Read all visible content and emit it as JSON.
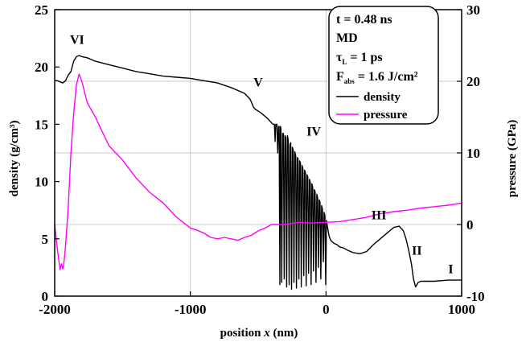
{
  "chart_data": {
    "type": "line",
    "xlabel_prefix": "position",
    "xlabel_var": "x",
    "xlabel_unit": "(nm)",
    "ylabel_left": "density (g/cm³)",
    "ylabel_right": "pressure (GPa)",
    "xlim": [
      -2000,
      1000
    ],
    "ylim_left": [
      0,
      25
    ],
    "ylim_right": [
      -10,
      30
    ],
    "x_ticks": [
      "-2000",
      "-1000",
      "0",
      "1000"
    ],
    "x_tick_values": [
      -2000,
      -1000,
      0,
      1000
    ],
    "y_left_ticks": [
      "0",
      "5",
      "10",
      "15",
      "20",
      "25"
    ],
    "y_left_tick_values": [
      0,
      5,
      10,
      15,
      20,
      25
    ],
    "y_right_ticks": [
      "-10",
      "0",
      "10",
      "20",
      "30"
    ],
    "y_right_tick_values": [
      -10,
      0,
      10,
      20,
      30
    ],
    "grid": true,
    "legend_position": "top-right",
    "info_box": {
      "time": "t = 0.48 ns",
      "method": "MD",
      "tau_main": "τ",
      "tau_sub": "L",
      "tau_value": " = 1 ps",
      "f_main": "F",
      "f_sub": "abs",
      "f_value": " = 1.6 J/cm²"
    },
    "annotations": [
      {
        "label": "VI",
        "x": -1835,
        "y": 22.0
      },
      {
        "label": "V",
        "x": -500,
        "y": 18.3
      },
      {
        "label": "IV",
        "x": -90,
        "y": 14.0
      },
      {
        "label": "III",
        "x": 390,
        "y": 6.7
      },
      {
        "label": "II",
        "x": 670,
        "y": 3.6
      },
      {
        "label": "I",
        "x": 920,
        "y": 2.0
      }
    ],
    "series": [
      {
        "name": "density",
        "axis": "left",
        "color": "#000000",
        "x": [
          -2000,
          -1980,
          -1940,
          -1920,
          -1900,
          -1880,
          -1860,
          -1840,
          -1820,
          -1800,
          -1760,
          -1700,
          -1600,
          -1500,
          -1400,
          -1300,
          -1200,
          -1100,
          -1000,
          -900,
          -800,
          -700,
          -600,
          -560,
          -545,
          -535,
          -520,
          -480,
          -430,
          -400,
          -390,
          -380,
          -375,
          -370,
          -362,
          -356,
          -350,
          -345,
          -340,
          -336,
          -332,
          -326,
          -320,
          -314,
          -308,
          -302,
          -296,
          -290,
          -284,
          -278,
          -272,
          -266,
          -260,
          -254,
          -248,
          -242,
          -236,
          -230,
          -224,
          -218,
          -212,
          -206,
          -200,
          -194,
          -188,
          -182,
          -176,
          -170,
          -164,
          -158,
          -152,
          -146,
          -140,
          -134,
          -128,
          -122,
          -116,
          -110,
          -104,
          -98,
          -92,
          -86,
          -80,
          -74,
          -68,
          -62,
          -56,
          -50,
          -44,
          -38,
          -32,
          -26,
          -20,
          -14,
          -8,
          -2,
          4,
          10,
          16,
          22,
          30,
          40,
          60,
          80,
          100,
          130,
          160,
          200,
          250,
          300,
          350,
          400,
          450,
          500,
          540,
          570,
          590,
          610,
          630,
          645,
          660,
          680,
          700,
          750,
          800,
          900,
          1000
        ],
        "y": [
          18.8,
          18.8,
          18.6,
          18.8,
          19.3,
          19.6,
          20.5,
          20.9,
          21.0,
          20.9,
          20.8,
          20.5,
          20.2,
          19.9,
          19.6,
          19.4,
          19.2,
          19.1,
          19.0,
          18.8,
          18.6,
          18.2,
          17.7,
          17.2,
          16.8,
          16.5,
          16.3,
          16.0,
          15.5,
          15.1,
          15.0,
          15.0,
          13.5,
          15.0,
          15.0,
          12.5,
          14.8,
          14.8,
          1.0,
          14.8,
          14.6,
          1.2,
          14.2,
          14.2,
          1.5,
          14.0,
          13.8,
          0.8,
          14.0,
          13.6,
          1.0,
          13.2,
          13.4,
          0.6,
          13.0,
          12.8,
          1.2,
          12.6,
          12.3,
          0.7,
          12.1,
          12.0,
          1.5,
          11.8,
          11.6,
          0.8,
          11.4,
          11.1,
          1.8,
          11.0,
          10.8,
          0.9,
          10.6,
          10.4,
          2.0,
          10.2,
          9.9,
          1.0,
          9.8,
          9.5,
          2.2,
          9.3,
          9.1,
          1.2,
          8.9,
          8.6,
          2.5,
          8.4,
          8.2,
          1.5,
          7.9,
          7.6,
          3.0,
          7.3,
          7.0,
          1.0,
          6.6,
          6.1,
          5.7,
          5.3,
          5.0,
          4.8,
          4.6,
          4.5,
          4.3,
          4.2,
          4.0,
          3.8,
          3.7,
          3.9,
          4.5,
          5.0,
          5.5,
          6.0,
          6.1,
          5.7,
          5.0,
          4.0,
          2.8,
          1.5,
          0.8,
          1.2,
          1.3,
          1.3,
          1.3,
          1.4,
          1.4
        ]
      },
      {
        "name": "pressure",
        "axis": "right",
        "color": "#ff00ff",
        "x": [
          -2000,
          -1980,
          -1960,
          -1950,
          -1940,
          -1930,
          -1920,
          -1900,
          -1880,
          -1860,
          -1840,
          -1820,
          -1800,
          -1780,
          -1760,
          -1700,
          -1650,
          -1600,
          -1500,
          -1400,
          -1300,
          -1200,
          -1100,
          -1000,
          -950,
          -900,
          -850,
          -800,
          -750,
          -700,
          -650,
          -600,
          -550,
          -500,
          -450,
          -400,
          -300,
          -200,
          -100,
          0,
          100,
          200,
          300,
          400,
          500,
          600,
          700,
          800,
          900,
          1000
        ],
        "y": [
          0.0,
          -3.5,
          -6.3,
          -5.5,
          -6.2,
          -5.0,
          -3.0,
          2.5,
          10.0,
          15.5,
          19.5,
          21.0,
          20.0,
          18.5,
          17.0,
          15.0,
          13.0,
          11.0,
          9.0,
          6.5,
          4.5,
          3.0,
          1.0,
          -0.5,
          -0.8,
          -1.2,
          -1.8,
          -2.0,
          -1.8,
          -2.0,
          -2.2,
          -1.8,
          -1.5,
          -0.9,
          -0.5,
          0.0,
          0.0,
          0.3,
          0.2,
          0.3,
          0.4,
          0.7,
          1.0,
          1.5,
          1.8,
          2.0,
          2.3,
          2.5,
          2.7,
          3.0
        ]
      }
    ]
  }
}
